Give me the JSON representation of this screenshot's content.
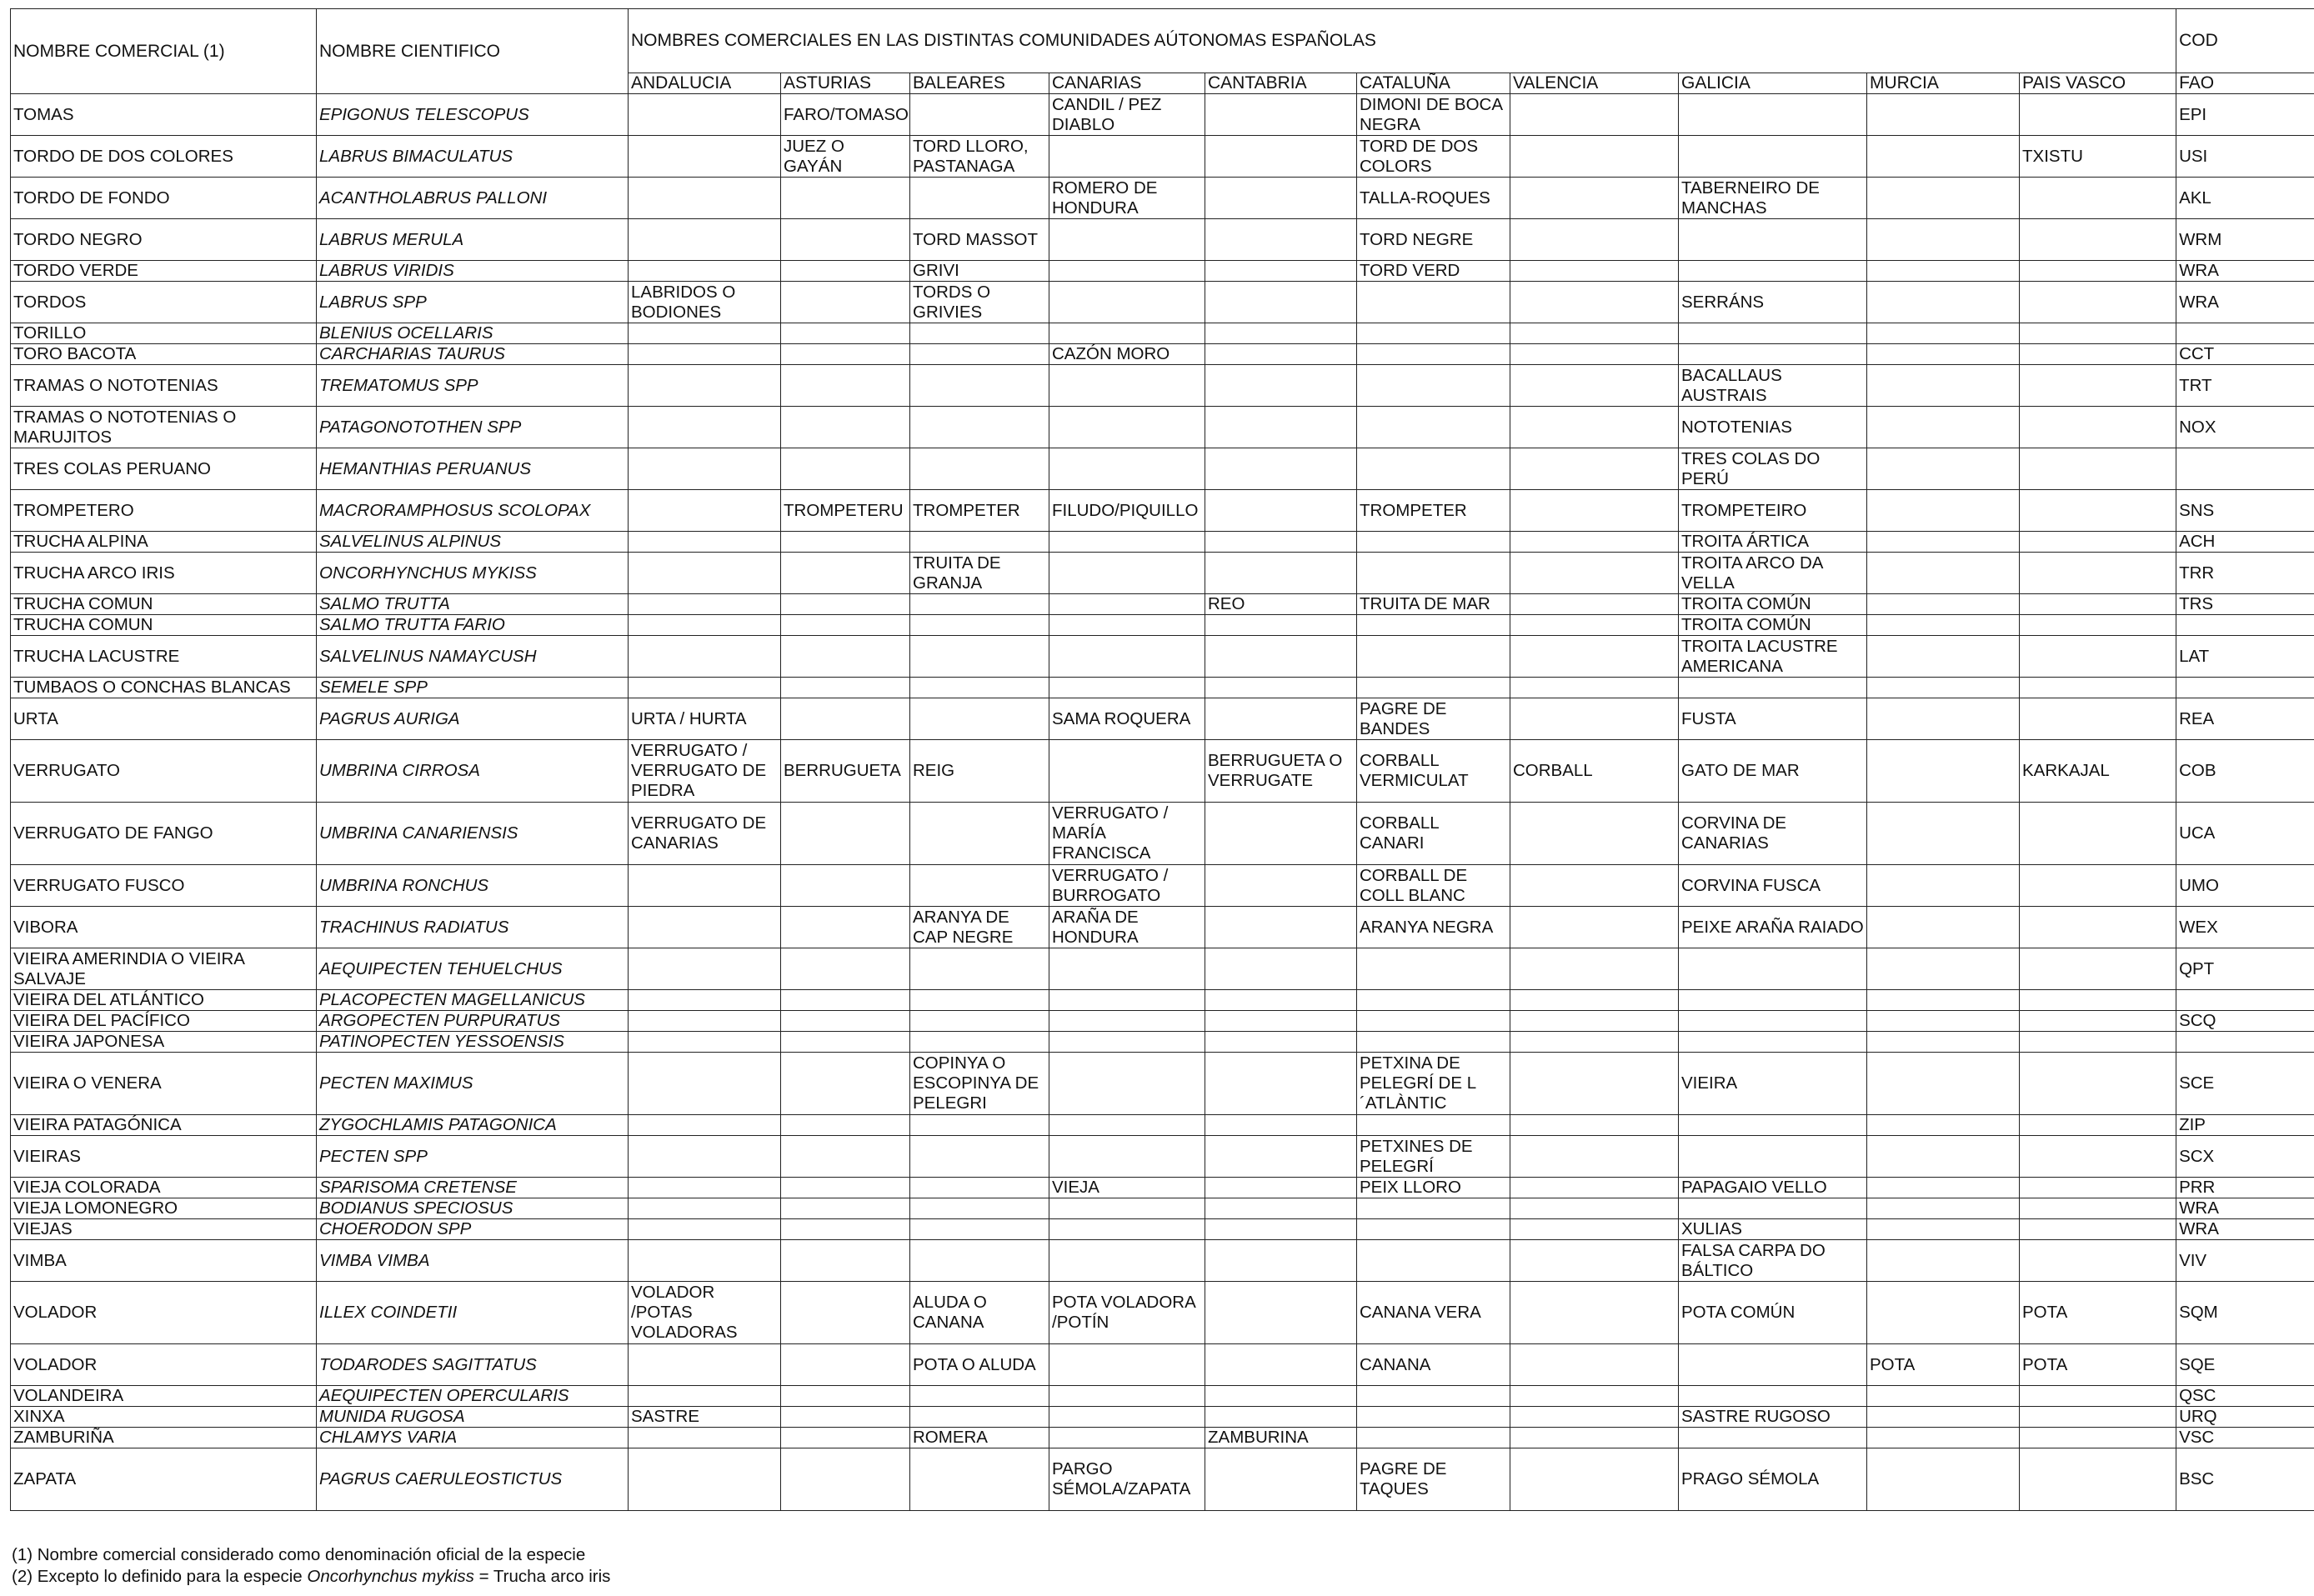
{
  "headers": {
    "nombre_comercial": "NOMBRE COMERCIAL (1)",
    "nombre_cientifico": "NOMBRE CIENTIFICO",
    "comunidades_title": "NOMBRES COMERCIALES EN LAS DISTINTAS COMUNIDADES AÚTONOMAS ESPAÑOLAS",
    "cod": "COD",
    "fao": "FAO",
    "regions": [
      "ANDALUCIA",
      "ASTURIAS",
      "BALEARES",
      "CANARIAS",
      "CANTABRIA",
      "CATALUÑA",
      "VALENCIA",
      "GALICIA",
      "MURCIA",
      "PAIS VASCO"
    ]
  },
  "rows": [
    {
      "n": "TOMAS",
      "s": "EPIGONUS TELESCOPUS",
      "r": [
        "",
        "FARO/TOMASO",
        "",
        "CANDIL / PEZ DIABLO",
        "",
        "DIMONI DE BOCA NEGRA",
        "",
        "",
        "",
        ""
      ],
      "f": "EPI",
      "h": 2
    },
    {
      "n": "TORDO DE DOS COLORES",
      "s": "LABRUS BIMACULATUS",
      "r": [
        "",
        "JUEZ O GAYÁN",
        "TORD LLORO, PASTANAGA",
        "",
        "",
        "TORD DE DOS COLORS",
        "",
        "",
        "",
        "TXISTU"
      ],
      "f": "USI",
      "h": 2
    },
    {
      "n": "TORDO DE FONDO",
      "s": "ACANTHOLABRUS PALLONI",
      "r": [
        "",
        "",
        "",
        "ROMERO DE HONDURA",
        "",
        "TALLA-ROQUES",
        "",
        "TABERNEIRO DE MANCHAS",
        "",
        ""
      ],
      "f": "AKL",
      "h": 2
    },
    {
      "n": "TORDO NEGRO",
      "s": "LABRUS MERULA",
      "r": [
        "",
        "",
        "TORD MASSOT",
        "",
        "",
        "TORD NEGRE",
        "",
        "",
        "",
        ""
      ],
      "f": "WRM",
      "h": 2
    },
    {
      "n": "TORDO VERDE",
      "s": "LABRUS VIRIDIS",
      "r": [
        "",
        "",
        "GRIVI",
        "",
        "",
        "TORD VERD",
        "",
        "",
        "",
        ""
      ],
      "f": "WRA",
      "h": 1
    },
    {
      "n": "TORDOS",
      "s": "LABRUS SPP",
      "r": [
        "LABRIDOS O BODIONES",
        "",
        "TORDS O GRIVIES",
        "",
        "",
        "",
        "",
        "SERRÁNS",
        "",
        ""
      ],
      "f": "WRA",
      "h": 2
    },
    {
      "n": "TORILLO",
      "s": "BLENIUS OCELLARIS",
      "r": [
        "",
        "",
        "",
        "",
        "",
        "",
        "",
        "",
        "",
        ""
      ],
      "f": "",
      "h": 1
    },
    {
      "n": "TORO BACOTA",
      "s": "CARCHARIAS TAURUS",
      "r": [
        "",
        "",
        "",
        "CAZÓN MORO",
        "",
        "",
        "",
        "",
        "",
        ""
      ],
      "f": "CCT",
      "h": 1
    },
    {
      "n": "TRAMAS O NOTOTENIAS",
      "s": "TREMATOMUS SPP",
      "r": [
        "",
        "",
        "",
        "",
        "",
        "",
        "",
        "BACALLAUS AUSTRAIS",
        "",
        ""
      ],
      "f": "TRT",
      "h": 2
    },
    {
      "n": "TRAMAS O NOTOTENIAS O MARUJITOS",
      "s": "PATAGONOTOTHEN SPP",
      "r": [
        "",
        "",
        "",
        "",
        "",
        "",
        "",
        "NOTOTENIAS",
        "",
        ""
      ],
      "f": "NOX",
      "h": 2
    },
    {
      "n": "TRES COLAS PERUANO",
      "s": "HEMANTHIAS PERUANUS",
      "r": [
        "",
        "",
        "",
        "",
        "",
        "",
        "",
        "TRES COLAS DO PERÚ",
        "",
        ""
      ],
      "f": "",
      "h": 2
    },
    {
      "n": "TROMPETERO",
      "s": "MACRORAMPHOSUS SCOLOPAX",
      "r": [
        "",
        "TROMPETERU",
        "TROMPETER",
        "FILUDO/PIQUILLO",
        "",
        "TROMPETER",
        "",
        "TROMPETEIRO",
        "",
        ""
      ],
      "f": "SNS",
      "h": 2
    },
    {
      "n": "TRUCHA ALPINA",
      "s": "SALVELINUS ALPINUS",
      "r": [
        "",
        "",
        "",
        "",
        "",
        "",
        "",
        "TROITA ÁRTICA",
        "",
        ""
      ],
      "f": "ACH",
      "h": 1
    },
    {
      "n": "TRUCHA ARCO IRIS",
      "s": "ONCORHYNCHUS MYKISS",
      "r": [
        "",
        "",
        "TRUITA DE GRANJA",
        "",
        "",
        "",
        "",
        "TROITA ARCO DA VELLA",
        "",
        ""
      ],
      "f": "TRR",
      "h": 2
    },
    {
      "n": "TRUCHA COMUN",
      "s": "SALMO TRUTTA",
      "r": [
        "",
        "",
        "",
        "",
        "REO",
        "TRUITA DE MAR",
        "",
        "TROITA COMÚN",
        "",
        ""
      ],
      "f": "TRS",
      "h": 1
    },
    {
      "n": "TRUCHA COMUN",
      "s": "SALMO TRUTTA FARIO",
      "r": [
        "",
        "",
        "",
        "",
        "",
        "",
        "",
        "TROITA COMÚN",
        "",
        ""
      ],
      "f": "",
      "h": 1
    },
    {
      "n": "TRUCHA LACUSTRE",
      "s": "SALVELINUS NAMAYCUSH",
      "r": [
        "",
        "",
        "",
        "",
        "",
        "",
        "",
        "TROITA LACUSTRE AMERICANA",
        "",
        ""
      ],
      "f": "LAT",
      "h": 2
    },
    {
      "n": "TUMBAOS O CONCHAS BLANCAS",
      "s": "SEMELE SPP",
      "r": [
        "",
        "",
        "",
        "",
        "",
        "",
        "",
        "",
        "",
        ""
      ],
      "f": "",
      "h": 1
    },
    {
      "n": "URTA",
      "s": "PAGRUS AURIGA",
      "r": [
        "URTA / HURTA",
        "",
        "",
        "SAMA ROQUERA",
        "",
        "PAGRE DE BANDES",
        "",
        "FUSTA",
        "",
        ""
      ],
      "f": "REA",
      "h": 2
    },
    {
      "n": "VERRUGATO",
      "s": "UMBRINA CIRROSA",
      "r": [
        "VERRUGATO / VERRUGATO DE PIEDRA",
        "BERRUGUETA",
        "REIG",
        "",
        "BERRUGUETA O VERRUGATE",
        "CORBALL VERMICULAT",
        "CORBALL",
        "GATO DE MAR",
        "",
        "KARKAJAL"
      ],
      "f": "COB",
      "h": 3
    },
    {
      "n": "VERRUGATO DE FANGO",
      "s": "UMBRINA CANARIENSIS",
      "r": [
        "VERRUGATO DE CANARIAS",
        "",
        "",
        "VERRUGATO  / MARÍA FRANCISCA",
        "",
        "CORBALL CANARI",
        "",
        "CORVINA DE CANARIAS",
        "",
        ""
      ],
      "f": "UCA",
      "h": 3
    },
    {
      "n": "VERRUGATO FUSCO",
      "s": "UMBRINA RONCHUS",
      "r": [
        "",
        "",
        "",
        "VERRUGATO / BURROGATO",
        "",
        "CORBALL DE COLL BLANC",
        "",
        "CORVINA FUSCA",
        "",
        ""
      ],
      "f": "UMO",
      "h": 2
    },
    {
      "n": "VIBORA",
      "s": "TRACHINUS RADIATUS",
      "r": [
        "",
        "",
        "ARANYA DE CAP NEGRE",
        "ARAÑA DE HONDURA",
        "",
        "ARANYA NEGRA",
        "",
        "PEIXE ARAÑA RAIADO",
        "",
        ""
      ],
      "f": "WEX",
      "h": 2
    },
    {
      "n": "VIEIRA AMERINDIA O VIEIRA SALVAJE",
      "s": "AEQUIPECTEN TEHUELCHUS",
      "r": [
        "",
        "",
        "",
        "",
        "",
        "",
        "",
        "",
        "",
        ""
      ],
      "f": "QPT",
      "h": 2
    },
    {
      "n": "VIEIRA DEL ATLÁNTICO",
      "s": "PLACOPECTEN MAGELLANICUS",
      "r": [
        "",
        "",
        "",
        "",
        "",
        "",
        "",
        "",
        "",
        ""
      ],
      "f": "",
      "h": 1
    },
    {
      "n": "VIEIRA DEL PACÍFICO",
      "s": "ARGOPECTEN PURPURATUS",
      "r": [
        "",
        "",
        "",
        "",
        "",
        "",
        "",
        "",
        "",
        ""
      ],
      "f": "SCQ",
      "h": 1
    },
    {
      "n": "VIEIRA JAPONESA",
      "s": "PATINOPECTEN YESSOENSIS",
      "r": [
        "",
        "",
        "",
        "",
        "",
        "",
        "",
        "",
        "",
        ""
      ],
      "f": "",
      "h": 1
    },
    {
      "n": "VIEIRA O VENERA",
      "s": "PECTEN MAXIMUS",
      "r": [
        "",
        "",
        "COPINYA O ESCOPINYA DE PELEGRI",
        "",
        "",
        "PETXINA DE PELEGRÍ DE L´ATLÀNTIC",
        "",
        "VIEIRA",
        "",
        ""
      ],
      "f": "SCE",
      "h": 3
    },
    {
      "n": "VIEIRA PATAGÓNICA",
      "s": "ZYGOCHLAMIS PATAGONICA",
      "r": [
        "",
        "",
        "",
        "",
        "",
        "",
        "",
        "",
        "",
        ""
      ],
      "f": "ZIP",
      "h": 1
    },
    {
      "n": "VIEIRAS",
      "s": "PECTEN SPP",
      "r": [
        "",
        "",
        "",
        "",
        "",
        "PETXINES DE PELEGRÍ",
        "",
        "",
        "",
        ""
      ],
      "f": "SCX",
      "h": 2
    },
    {
      "n": "VIEJA COLORADA",
      "s": "SPARISOMA CRETENSE",
      "r": [
        "",
        "",
        "",
        "VIEJA",
        "",
        "PEIX LLORO",
        "",
        "PAPAGAIO VELLO",
        "",
        ""
      ],
      "f": "PRR",
      "h": 1
    },
    {
      "n": "VIEJA LOMONEGRO",
      "s": "BODIANUS SPECIOSUS",
      "r": [
        "",
        "",
        "",
        "",
        "",
        "",
        "",
        "",
        "",
        ""
      ],
      "f": "WRA",
      "h": 1
    },
    {
      "n": "VIEJAS",
      "s": "CHOERODON SPP",
      "r": [
        "",
        "",
        "",
        "",
        "",
        "",
        "",
        "XULIAS",
        "",
        ""
      ],
      "f": "WRA",
      "h": 1
    },
    {
      "n": "VIMBA",
      "s": "VIMBA VIMBA",
      "r": [
        "",
        "",
        "",
        "",
        "",
        "",
        "",
        "FALSA CARPA DO BÁLTICO",
        "",
        ""
      ],
      "f": "VIV",
      "h": 2
    },
    {
      "n": "VOLADOR",
      "s": "ILLEX COINDETII",
      "r": [
        "VOLADOR /POTAS VOLADORAS",
        "",
        "ALUDA O CANANA",
        "POTA VOLADORA /POTÍN",
        "",
        "CANANA VERA",
        "",
        "POTA COMÚN",
        "",
        "POTA"
      ],
      "f": "SQM",
      "h": 3
    },
    {
      "n": "VOLADOR",
      "s": "TODARODES SAGITTATUS",
      "r": [
        "",
        "",
        "POTA O ALUDA",
        "",
        "",
        "CANANA",
        "",
        "",
        "POTA",
        "POTA"
      ],
      "f": "SQE",
      "h": 2
    },
    {
      "n": "VOLANDEIRA",
      "s": "AEQUIPECTEN OPERCULARIS",
      "r": [
        "",
        "",
        "",
        "",
        "",
        "",
        "",
        "",
        "",
        ""
      ],
      "f": "QSC",
      "h": 1
    },
    {
      "n": "XINXA",
      "s": "MUNIDA RUGOSA",
      "r": [
        "SASTRE",
        "",
        "",
        "",
        "",
        "",
        "",
        "SASTRE RUGOSO",
        "",
        ""
      ],
      "f": "URQ",
      "h": 1
    },
    {
      "n": "ZAMBURIÑA",
      "s": "CHLAMYS VARIA",
      "r": [
        "",
        "",
        "ROMERA",
        "",
        "ZAMBURINA",
        "",
        "",
        "",
        "",
        ""
      ],
      "f": "VSC",
      "h": 1
    },
    {
      "n": "ZAPATA",
      "s": "PAGRUS CAERULEOSTICTUS",
      "r": [
        "",
        "",
        "",
        "PARGO SÉMOLA/ZAPATA",
        "",
        "PAGRE DE TAQUES",
        "",
        "PRAGO SÉMOLA",
        "",
        ""
      ],
      "f": "BSC",
      "h": 3
    }
  ],
  "notes": {
    "note1": "(1) Nombre comercial considerado como denominación oficial de la especie",
    "note2_prefix": "(2) Excepto lo definido para la especie ",
    "note2_species": "Oncorhynchus mykiss",
    "note2_suffix": " = Trucha arco iris"
  }
}
